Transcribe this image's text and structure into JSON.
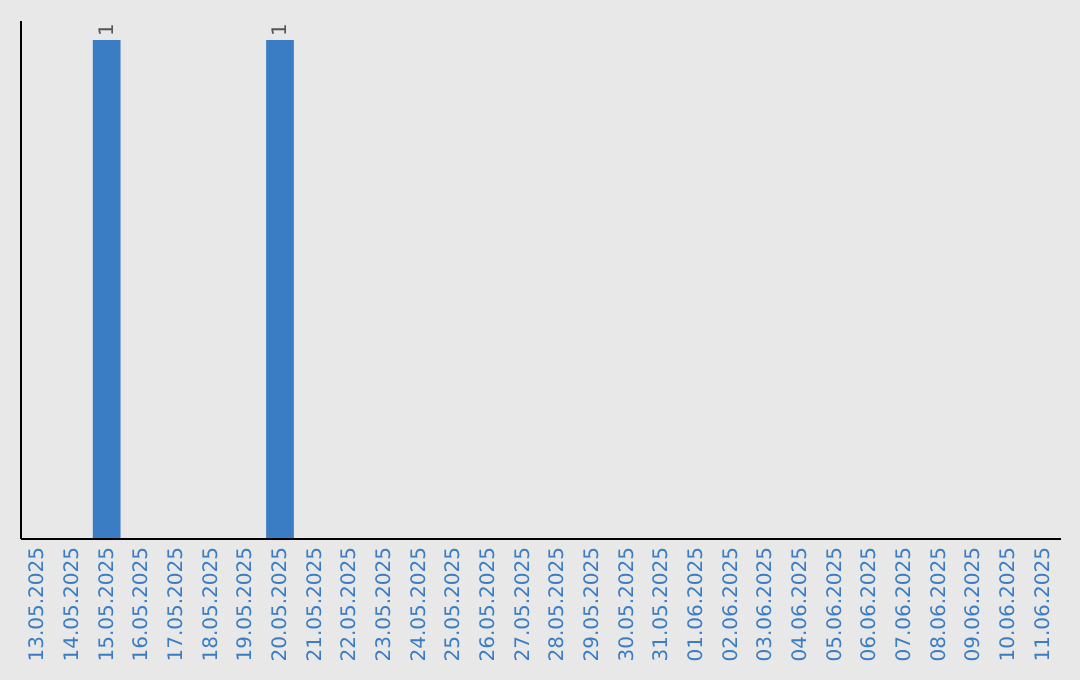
{
  "chart_data": {
    "type": "bar",
    "categories": [
      "13.05.2025",
      "14.05.2025",
      "15.05.2025",
      "16.05.2025",
      "17.05.2025",
      "18.05.2025",
      "19.05.2025",
      "20.05.2025",
      "21.05.2025",
      "22.05.2025",
      "23.05.2025",
      "24.05.2025",
      "25.05.2025",
      "26.05.2025",
      "27.05.2025",
      "28.05.2025",
      "29.05.2025",
      "30.05.2025",
      "31.05.2025",
      "01.06.2025",
      "02.06.2025",
      "03.06.2025",
      "04.06.2025",
      "05.06.2025",
      "06.06.2025",
      "07.06.2025",
      "08.06.2025",
      "09.06.2025",
      "10.06.2025",
      "11.06.2025"
    ],
    "values": [
      0,
      0,
      1,
      0,
      0,
      0,
      0,
      1,
      0,
      0,
      0,
      0,
      0,
      0,
      0,
      0,
      0,
      0,
      0,
      0,
      0,
      0,
      0,
      0,
      0,
      0,
      0,
      0,
      0,
      0
    ],
    "value_labels": [
      null,
      null,
      "1",
      null,
      null,
      null,
      null,
      "1",
      null,
      null,
      null,
      null,
      null,
      null,
      null,
      null,
      null,
      null,
      null,
      null,
      null,
      null,
      null,
      null,
      null,
      null,
      null,
      null,
      null,
      null
    ],
    "color": "#3a7dc4",
    "tick_labels": "x"
  }
}
